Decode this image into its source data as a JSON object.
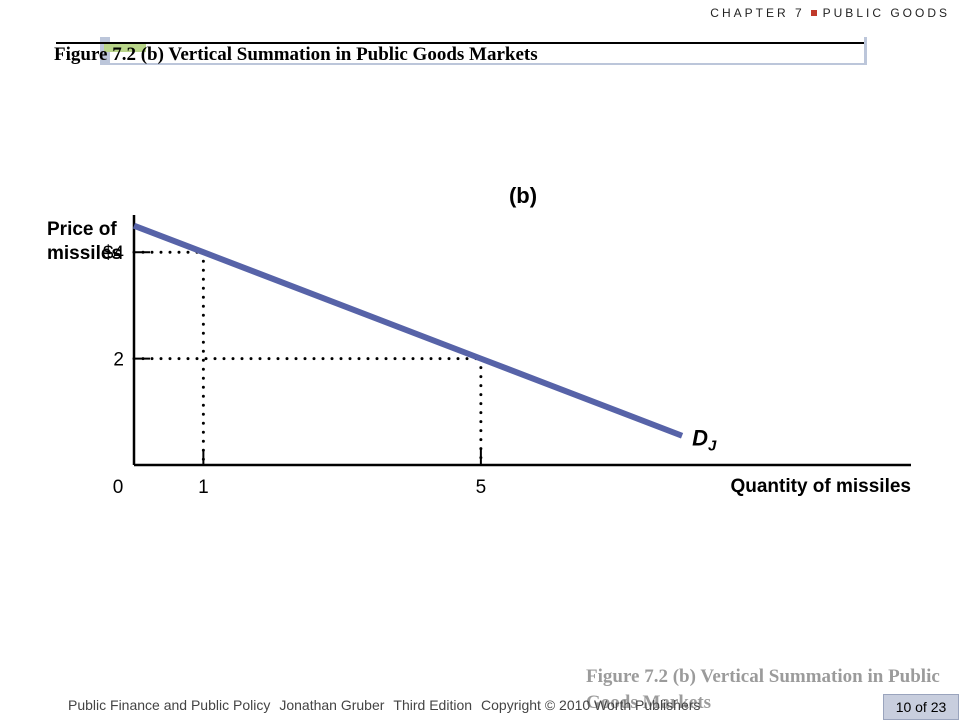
{
  "header": {
    "chapter_label": "CHAPTER 7",
    "chapter_subject": "PUBLIC GOODS"
  },
  "figure_title": "Figure 7.2 (b) Vertical Summation in Public Goods Markets",
  "chart_data": {
    "type": "line",
    "panel_label": "(b)",
    "ylabel_line1": "Price of",
    "ylabel_line2": "missiles",
    "xlabel": "Quantity of missiles",
    "xlim": [
      0,
      11.2
    ],
    "ylim": [
      0,
      4.7
    ],
    "y_ticks": [
      {
        "value": 4,
        "label": "$4"
      },
      {
        "value": 2,
        "label": "2"
      }
    ],
    "x_ticks": [
      {
        "value": 1,
        "label": "1"
      },
      {
        "value": 5,
        "label": "5"
      }
    ],
    "origin_label": "0",
    "series": [
      {
        "name": "D_J",
        "name_main": "D",
        "name_sub": "J",
        "color": "#5763a8",
        "x": [
          0,
          1,
          5,
          7.9
        ],
        "y": [
          4.5,
          4,
          2,
          0.55
        ]
      }
    ],
    "guides": [
      {
        "x": 1,
        "y": 4
      },
      {
        "x": 5,
        "y": 2
      }
    ]
  },
  "footer": {
    "book": "Public Finance and Public Policy",
    "author": "Jonathan Gruber",
    "edition": "Third Edition",
    "copyright": "Copyright © 2010 Worth Publishers"
  },
  "ghost_title": "Figure 7.2 (b) Vertical Summation in Public Goods Markets",
  "page_indicator": "10 of 23"
}
